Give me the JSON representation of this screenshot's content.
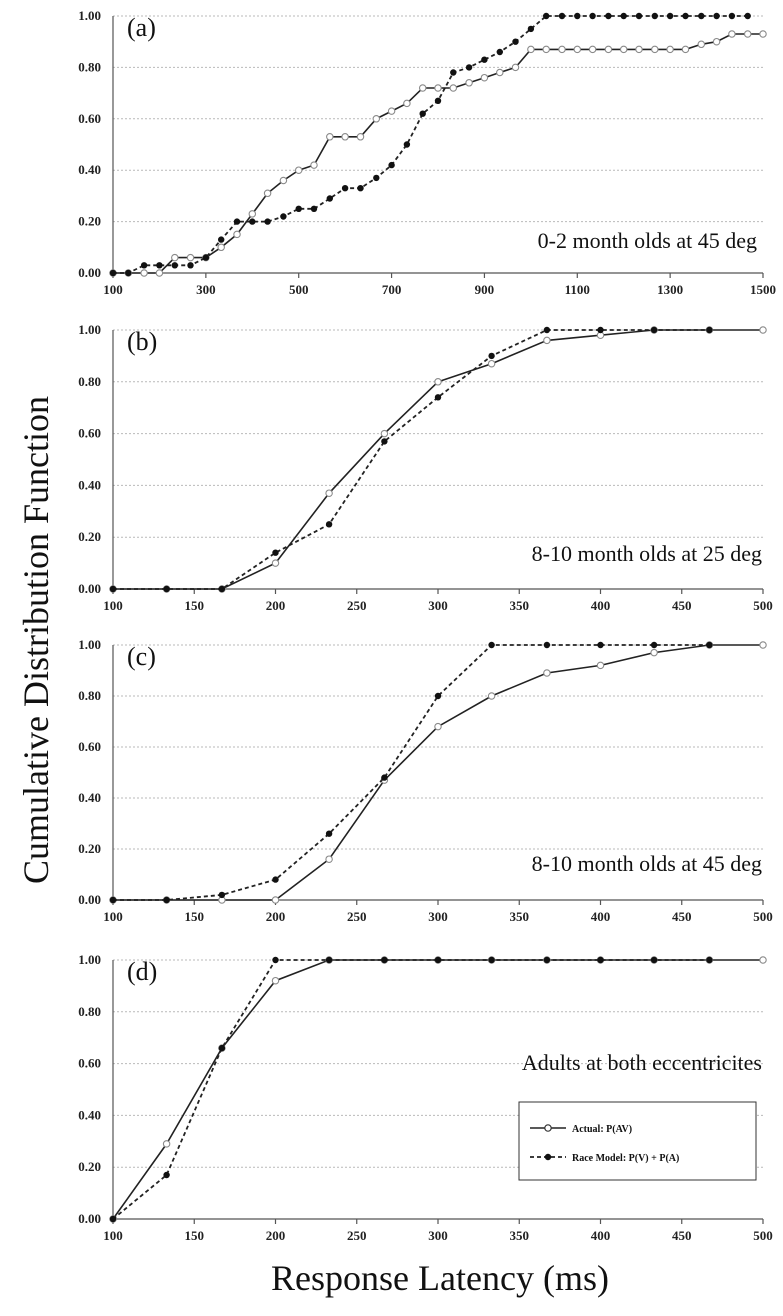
{
  "figure": {
    "ylabel": "Cumulative Distribution Function",
    "xlabel": "Response Latency (ms)"
  },
  "legend": {
    "placement": "bottom-right of panel (d)",
    "actual_label": "Actual: P(AV)",
    "race_label": "Race Model: P(V) + P(A)"
  },
  "chart_data": [
    {
      "type": "line",
      "panel_label": "(a)",
      "annotation": "0-2 month olds at 45 deg",
      "xlim": [
        100,
        1500
      ],
      "xticks": [
        100,
        300,
        500,
        700,
        900,
        1100,
        1300,
        1500
      ],
      "ylim": [
        0,
        1
      ],
      "yticks": [
        "0.00",
        "0.20",
        "0.40",
        "0.60",
        "0.80",
        "1.00"
      ],
      "grid": true,
      "series": [
        {
          "key": "actual",
          "x": [
            100,
            133,
            167,
            200,
            233,
            267,
            300,
            333,
            367,
            400,
            433,
            467,
            500,
            533,
            567,
            600,
            633,
            667,
            700,
            733,
            767,
            800,
            833,
            867,
            900,
            933,
            967,
            1000,
            1033,
            1067,
            1100,
            1133,
            1167,
            1200,
            1233,
            1267,
            1300,
            1333,
            1367,
            1400,
            1433,
            1467,
            1500
          ],
          "y": [
            0.0,
            0.0,
            0.0,
            0.0,
            0.06,
            0.06,
            0.06,
            0.1,
            0.15,
            0.23,
            0.31,
            0.36,
            0.4,
            0.42,
            0.53,
            0.53,
            0.53,
            0.6,
            0.63,
            0.66,
            0.72,
            0.72,
            0.72,
            0.74,
            0.76,
            0.78,
            0.8,
            0.87,
            0.87,
            0.87,
            0.87,
            0.87,
            0.87,
            0.87,
            0.87,
            0.87,
            0.87,
            0.87,
            0.89,
            0.9,
            0.93,
            0.93,
            0.93
          ]
        },
        {
          "key": "race",
          "x": [
            100,
            133,
            167,
            200,
            233,
            267,
            300,
            333,
            367,
            400,
            433,
            467,
            500,
            533,
            567,
            600,
            633,
            667,
            700,
            733,
            767,
            800,
            833,
            867,
            900,
            933,
            967,
            1000,
            1033,
            1067,
            1100,
            1133,
            1167,
            1200,
            1233,
            1267,
            1300,
            1333,
            1367,
            1400,
            1433,
            1467
          ],
          "y": [
            0.0,
            0.0,
            0.03,
            0.03,
            0.03,
            0.03,
            0.06,
            0.13,
            0.2,
            0.2,
            0.2,
            0.22,
            0.25,
            0.25,
            0.29,
            0.33,
            0.33,
            0.37,
            0.42,
            0.5,
            0.62,
            0.67,
            0.78,
            0.8,
            0.83,
            0.86,
            0.9,
            0.95,
            1.0,
            1.0,
            1.0,
            1.0,
            1.0,
            1.0,
            1.0,
            1.0,
            1.0,
            1.0,
            1.0,
            1.0,
            1.0,
            1.0
          ]
        }
      ]
    },
    {
      "type": "line",
      "panel_label": "(b)",
      "annotation": "8-10 month olds at 25 deg",
      "xlim": [
        100,
        500
      ],
      "xticks": [
        100,
        150,
        200,
        250,
        300,
        350,
        400,
        450,
        500
      ],
      "ylim": [
        0,
        1
      ],
      "yticks": [
        "0.00",
        "0.20",
        "0.40",
        "0.60",
        "0.80",
        "1.00"
      ],
      "grid": true,
      "series": [
        {
          "key": "actual",
          "x": [
            100,
            133,
            167,
            200,
            233,
            267,
            300,
            333,
            367,
            400,
            433,
            467,
            500
          ],
          "y": [
            0.0,
            0.0,
            0.0,
            0.1,
            0.37,
            0.6,
            0.8,
            0.87,
            0.96,
            0.98,
            1.0,
            1.0,
            1.0
          ]
        },
        {
          "key": "race",
          "x": [
            100,
            133,
            167,
            200,
            233,
            267,
            300,
            333,
            367,
            400,
            433,
            467
          ],
          "y": [
            0.0,
            0.0,
            0.0,
            0.14,
            0.25,
            0.57,
            0.74,
            0.9,
            1.0,
            1.0,
            1.0,
            1.0
          ]
        }
      ]
    },
    {
      "type": "line",
      "panel_label": "(c)",
      "annotation": "8-10 month olds at 45 deg",
      "xlim": [
        100,
        500
      ],
      "xticks": [
        100,
        150,
        200,
        250,
        300,
        350,
        400,
        450,
        500
      ],
      "ylim": [
        0,
        1
      ],
      "yticks": [
        "0.00",
        "0.20",
        "0.40",
        "0.60",
        "0.80",
        "1.00"
      ],
      "grid": true,
      "series": [
        {
          "key": "actual",
          "x": [
            100,
            133,
            167,
            200,
            233,
            267,
            300,
            333,
            367,
            400,
            433,
            467,
            500
          ],
          "y": [
            0.0,
            0.0,
            0.0,
            0.0,
            0.16,
            0.47,
            0.68,
            0.8,
            0.89,
            0.92,
            0.97,
            1.0,
            1.0
          ]
        },
        {
          "key": "race",
          "x": [
            100,
            133,
            167,
            200,
            233,
            267,
            300,
            333,
            367,
            400,
            433,
            467
          ],
          "y": [
            0.0,
            0.0,
            0.02,
            0.08,
            0.26,
            0.48,
            0.8,
            1.0,
            1.0,
            1.0,
            1.0,
            1.0
          ]
        }
      ]
    },
    {
      "type": "line",
      "panel_label": "(d)",
      "annotation": "Adults at both eccentricites",
      "xlim": [
        100,
        500
      ],
      "xticks": [
        100,
        150,
        200,
        250,
        300,
        350,
        400,
        450,
        500
      ],
      "ylim": [
        0,
        1
      ],
      "yticks": [
        "0.00",
        "0.20",
        "0.40",
        "0.60",
        "0.80",
        "1.00"
      ],
      "grid": true,
      "series": [
        {
          "key": "actual",
          "x": [
            100,
            133,
            167,
            200,
            233,
            267,
            300,
            333,
            367,
            400,
            433,
            467,
            500
          ],
          "y": [
            0.0,
            0.29,
            0.66,
            0.92,
            1.0,
            1.0,
            1.0,
            1.0,
            1.0,
            1.0,
            1.0,
            1.0,
            1.0
          ]
        },
        {
          "key": "race",
          "x": [
            100,
            133,
            167,
            200,
            233,
            267,
            300,
            333,
            367,
            400,
            433,
            467
          ],
          "y": [
            0.0,
            0.17,
            0.66,
            1.0,
            1.0,
            1.0,
            1.0,
            1.0,
            1.0,
            1.0,
            1.0,
            1.0
          ]
        }
      ]
    }
  ]
}
